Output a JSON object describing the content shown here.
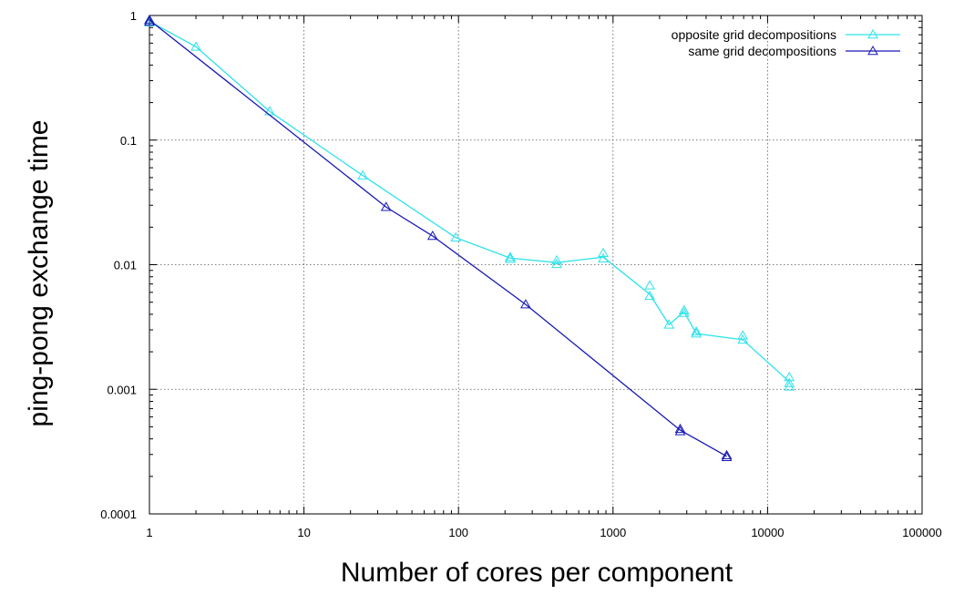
{
  "chart_data": {
    "type": "line",
    "xlabel": "Number of cores per component",
    "ylabel": "ping-pong exchange time",
    "x_scale": "log",
    "y_scale": "log",
    "xlim": [
      1,
      100000
    ],
    "ylim": [
      0.0001,
      1
    ],
    "x_ticks": [
      1,
      10,
      100,
      1000,
      10000,
      100000
    ],
    "x_tick_labels": [
      "1",
      "10",
      "100",
      "1000",
      "10000",
      "100000"
    ],
    "y_ticks": [
      0.0001,
      0.001,
      0.01,
      0.1,
      1
    ],
    "y_tick_labels": [
      "0.0001",
      "0.001",
      "0.01",
      "0.1",
      "1"
    ],
    "grid": true,
    "legend_position": "top-right",
    "series": [
      {
        "name": "opposite grid decompositions",
        "color": "#2fe2ea",
        "marker": "triangle",
        "line_points": [
          [
            1,
            0.9
          ],
          [
            2,
            0.56
          ],
          [
            6,
            0.17
          ],
          [
            24,
            0.052
          ],
          [
            96,
            0.0165
          ],
          [
            216,
            0.0113
          ],
          [
            432,
            0.0104
          ],
          [
            864,
            0.0115
          ],
          [
            1728,
            0.0058
          ],
          [
            2304,
            0.0033
          ],
          [
            2880,
            0.0042
          ],
          [
            3456,
            0.0028
          ],
          [
            6912,
            0.0025
          ],
          [
            13824,
            0.00115
          ]
        ],
        "markers": [
          [
            1,
            0.92
          ],
          [
            1,
            0.88
          ],
          [
            2,
            0.56
          ],
          [
            6,
            0.17
          ],
          [
            24,
            0.052
          ],
          [
            96,
            0.0165
          ],
          [
            216,
            0.0115
          ],
          [
            216,
            0.0111
          ],
          [
            432,
            0.0108
          ],
          [
            432,
            0.0101
          ],
          [
            864,
            0.0124
          ],
          [
            864,
            0.0112
          ],
          [
            1728,
            0.0068
          ],
          [
            1728,
            0.0056
          ],
          [
            2304,
            0.0033
          ],
          [
            2880,
            0.0043
          ],
          [
            2880,
            0.0041
          ],
          [
            3456,
            0.0029
          ],
          [
            3456,
            0.0028
          ],
          [
            6912,
            0.0027
          ],
          [
            6912,
            0.0025
          ],
          [
            13824,
            0.00125
          ],
          [
            13824,
            0.00112
          ],
          [
            13824,
            0.00105
          ]
        ]
      },
      {
        "name": "same grid decompositions",
        "color": "#1919b4",
        "marker": "triangle",
        "line_points": [
          [
            1,
            0.92
          ],
          [
            34,
            0.029
          ],
          [
            68,
            0.017
          ],
          [
            272,
            0.0048
          ],
          [
            2720,
            0.00047
          ],
          [
            5440,
            0.00029
          ]
        ],
        "markers": [
          [
            1,
            0.92
          ],
          [
            1,
            0.89
          ],
          [
            34,
            0.029
          ],
          [
            68,
            0.017
          ],
          [
            272,
            0.0048
          ],
          [
            2720,
            0.00048
          ],
          [
            2720,
            0.00046
          ],
          [
            5440,
            0.000295
          ],
          [
            5440,
            0.000285
          ]
        ]
      }
    ]
  }
}
